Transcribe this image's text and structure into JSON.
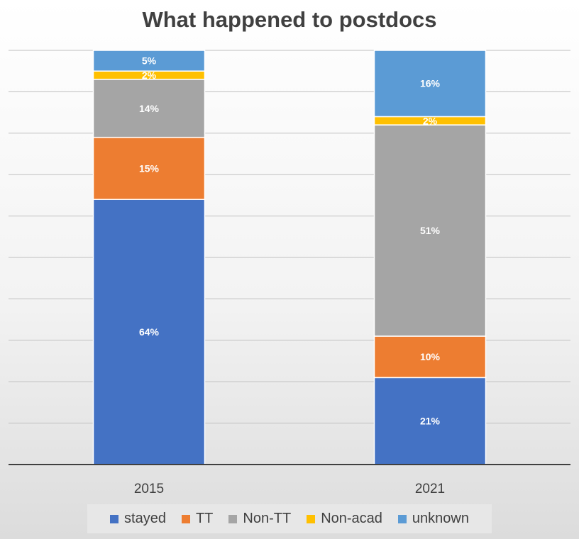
{
  "chart_data": {
    "type": "bar",
    "stacked": true,
    "title": "What happened to postdocs",
    "categories": [
      "2015",
      "2021"
    ],
    "ylim": [
      0,
      100
    ],
    "grid": true,
    "legend_position": "bottom",
    "series": [
      {
        "name": "stayed",
        "values": [
          64,
          21
        ],
        "labels": [
          "64%",
          "21%"
        ],
        "color": "#4472c4"
      },
      {
        "name": "TT",
        "values": [
          15,
          10
        ],
        "labels": [
          "15%",
          "10%"
        ],
        "color": "#ed7d31"
      },
      {
        "name": "Non-TT",
        "values": [
          14,
          51
        ],
        "labels": [
          "14%",
          "51%"
        ],
        "color": "#a5a5a5"
      },
      {
        "name": "Non-acad",
        "values": [
          2,
          2
        ],
        "labels": [
          "2%",
          "2%"
        ],
        "color": "#ffc000"
      },
      {
        "name": "unknown",
        "values": [
          5,
          16
        ],
        "labels": [
          "5%",
          "16%"
        ],
        "color": "#5b9bd5"
      }
    ]
  }
}
